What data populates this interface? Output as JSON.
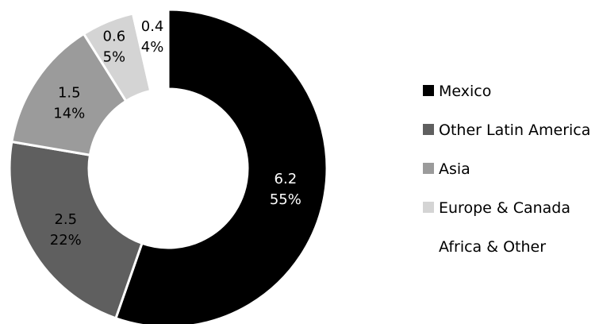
{
  "chart_data": {
    "type": "pie",
    "donut": true,
    "title": "",
    "legend_position": "right",
    "slices": [
      {
        "name": "Mexico",
        "value": 6.2,
        "percent_label": "55%",
        "value_label": "6.2",
        "color": "#000000",
        "label_color": "#ffffff"
      },
      {
        "name": "Other Latin America",
        "value": 2.5,
        "percent_label": "22%",
        "value_label": "2.5",
        "color": "#5f5f5f",
        "label_color": "#000000"
      },
      {
        "name": "Asia",
        "value": 1.5,
        "percent_label": "14%",
        "value_label": "1.5",
        "color": "#9b9b9b",
        "label_color": "#000000"
      },
      {
        "name": "Europe & Canada",
        "value": 0.6,
        "percent_label": "5%",
        "value_label": "0.6",
        "color": "#d4d4d4",
        "label_color": "#000000"
      },
      {
        "name": "Africa & Other",
        "value": 0.4,
        "percent_label": "4%",
        "value_label": "0.4",
        "color": "#ffffff",
        "label_color": "#000000"
      }
    ]
  }
}
